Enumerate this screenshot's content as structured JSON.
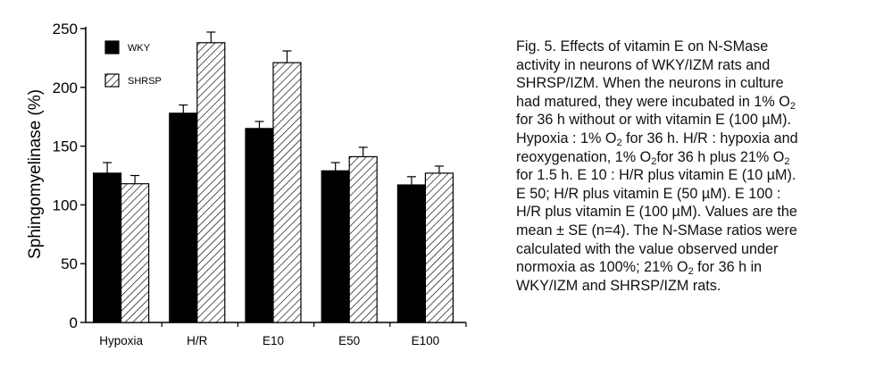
{
  "chart_data": {
    "type": "bar",
    "ylabel": "Sphingomyelinase (%)",
    "xlabel": "",
    "ylim": [
      0,
      250
    ],
    "yticks": [
      0,
      50,
      100,
      150,
      200,
      250
    ],
    "categories": [
      "Hypoxia",
      "H/R",
      "E10",
      "E50",
      "E100"
    ],
    "series": [
      {
        "name": "WKY",
        "fill": "#000000",
        "pattern": "solid",
        "values": [
          127,
          178,
          165,
          129,
          117
        ],
        "errors": [
          9,
          7,
          6,
          7,
          7
        ]
      },
      {
        "name": "SHRSP",
        "fill": "#ffffff",
        "pattern": "hatch",
        "values": [
          118,
          238,
          221,
          141,
          127
        ],
        "errors": [
          7,
          9,
          10,
          8,
          6
        ]
      }
    ],
    "legend_position": "top-left",
    "grid": false
  },
  "caption": {
    "lines": [
      "Fig. 5. Effects of vitamin E on N-SMase",
      "activity in neurons of WKY/IZM rats and",
      "SHRSP/IZM. When the neurons in culture",
      "had matured, they were incubated in 1% O",
      "for 36 h without or with vitamin E (100 µM).",
      "Hypoxia : 1% O",
      " for 36 h. H/R : hypoxia and",
      "reoxygenation, 1% O",
      "for 36 h plus 21% O",
      "for 1.5 h. E 10 : H/R plus vitamin E (10 µM).",
      "E 50; H/R plus vitamin E (50 µM). E 100 :",
      "H/R plus vitamin E (100 µM). Values are the",
      "mean ± SE (n=4). The N-SMase ratios were",
      "calculated with the value observed under",
      "normoxia as 100%; 21% O",
      " for 36 h in",
      "WKY/IZM and SHRSP/IZM rats."
    ],
    "subscript": "2"
  }
}
